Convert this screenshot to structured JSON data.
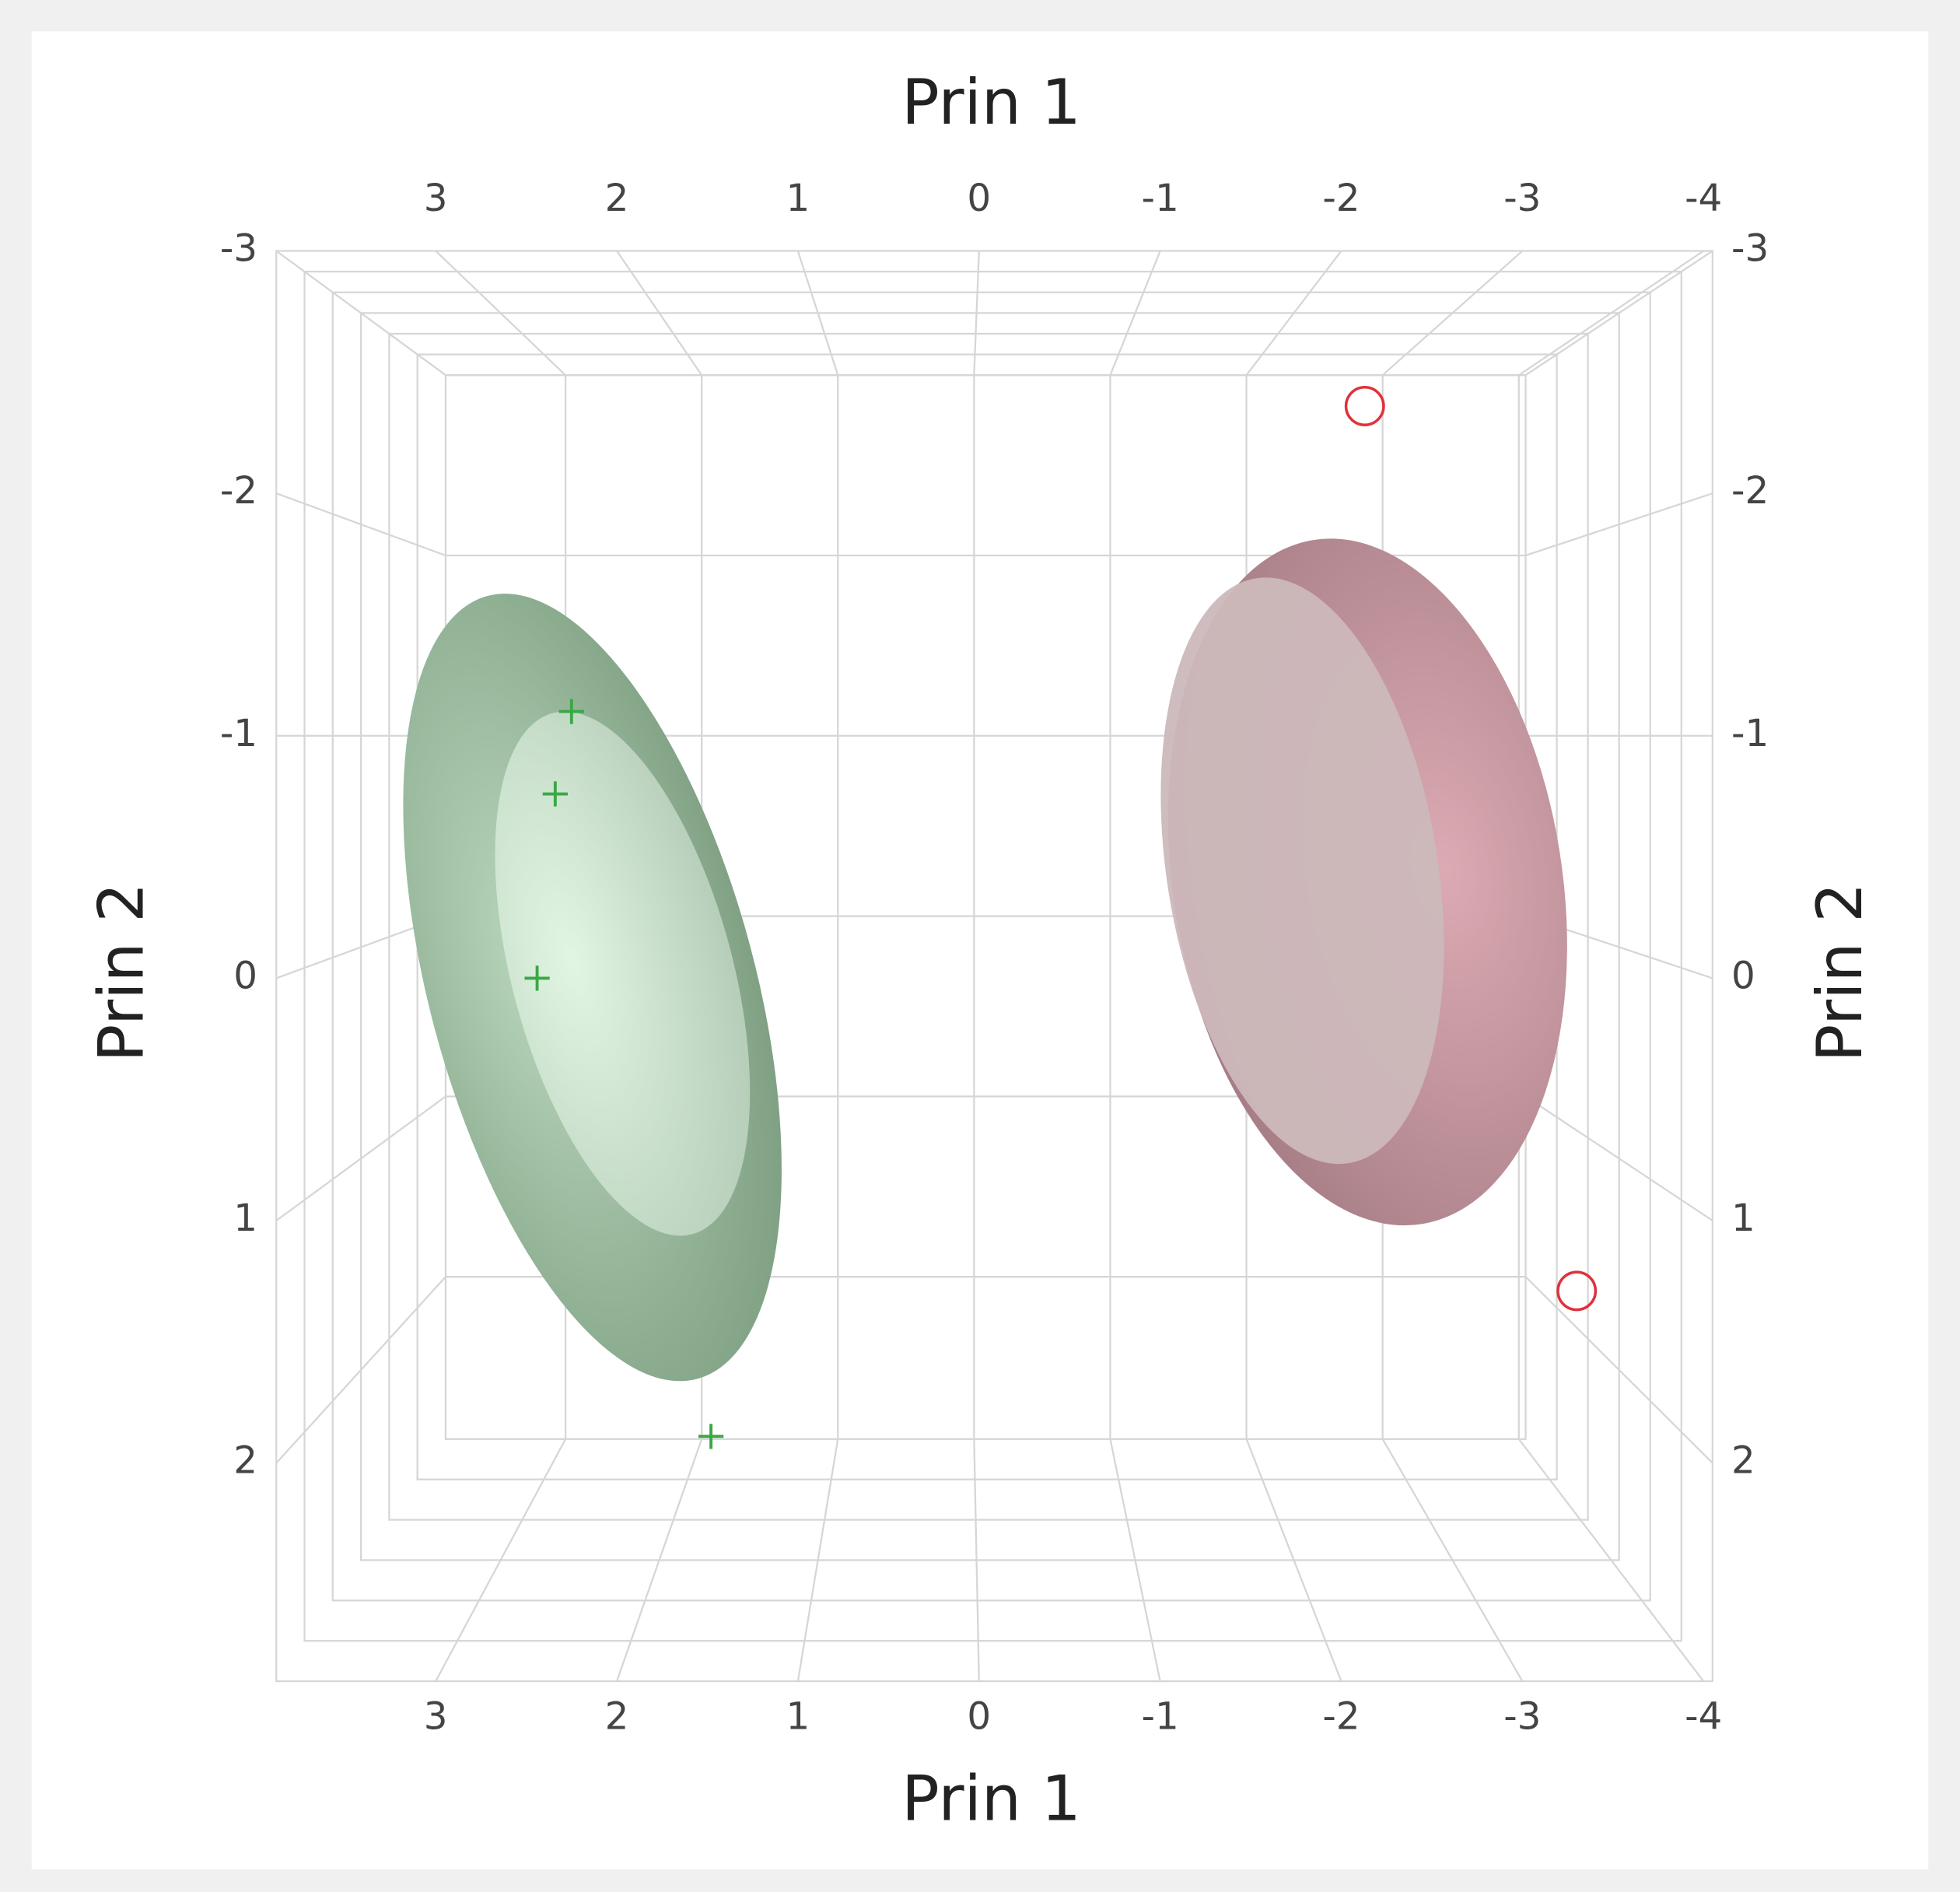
{
  "chart_data": {
    "type": "scatter",
    "xlabel": "Prin 1",
    "ylabel": "Prin 2",
    "xlim": [
      3.88,
      -4.05
    ],
    "xticks": [
      3,
      2,
      1,
      0,
      -1,
      -2,
      -3,
      -4
    ],
    "ylim": [
      -3,
      2.9
    ],
    "yticks": [
      -3,
      -2,
      -1,
      0,
      1,
      2
    ],
    "grid": true,
    "series": [
      {
        "color": "#3aa845",
        "marker": "plus",
        "x": [
          2.25,
          2.34,
          2.44,
          1.48
        ],
        "values": [
          -1.1,
          -0.76,
          0,
          1.89
        ]
      },
      {
        "color": "#e0323c",
        "marker": "circle",
        "x": [
          -2.13,
          -3.3
        ],
        "values": [
          -2.36,
          1.29
        ]
      }
    ]
  }
}
